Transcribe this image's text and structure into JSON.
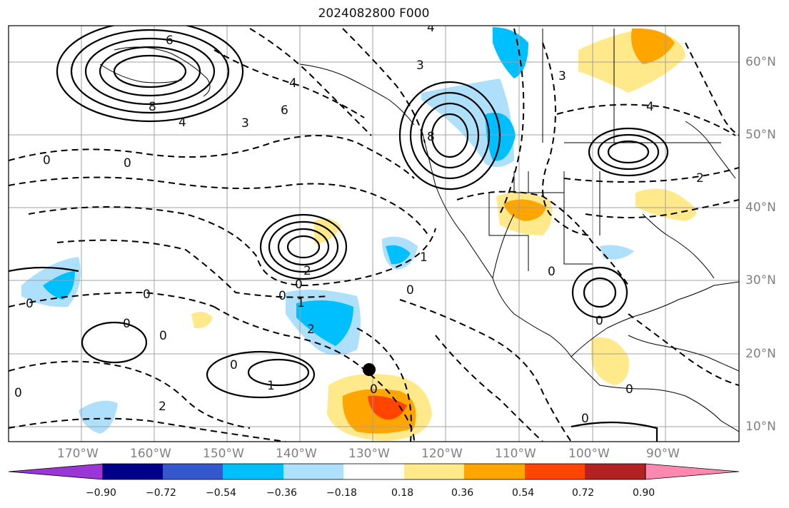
{
  "title": "2024082800 F000",
  "lon_labels": [
    "170°W",
    "160°W",
    "150°W",
    "140°W",
    "130°W",
    "120°W",
    "110°W",
    "100°W",
    "90°W"
  ],
  "lat_labels": [
    "60°N",
    "50°N",
    "40°N",
    "30°N",
    "20°N",
    "10°N"
  ],
  "colorbar": {
    "ticks": [
      "−0.90",
      "−0.72",
      "−0.54",
      "−0.36",
      "−0.18",
      "0.18",
      "0.36",
      "0.54",
      "0.72",
      "0.90"
    ],
    "colors": [
      "#9b35d6",
      "#00008b",
      "#3457cc",
      "#00bfff",
      "#aee0fb",
      "#ffffff",
      "#ffe98a",
      "#ffa500",
      "#ff4500",
      "#b22222",
      "#ff88b0"
    ]
  },
  "contour_labels": [
    "0",
    "0",
    "0",
    "0",
    "0",
    "0",
    "0",
    "0",
    "0",
    "0",
    "0",
    "0",
    "0",
    "0",
    "0",
    "0",
    "1",
    "1",
    "1",
    "2",
    "2",
    "2",
    "2",
    "4",
    "4",
    "4",
    "4",
    "6",
    "6",
    "8",
    "8",
    "3",
    "3",
    "3"
  ],
  "marker": "storm-center"
}
